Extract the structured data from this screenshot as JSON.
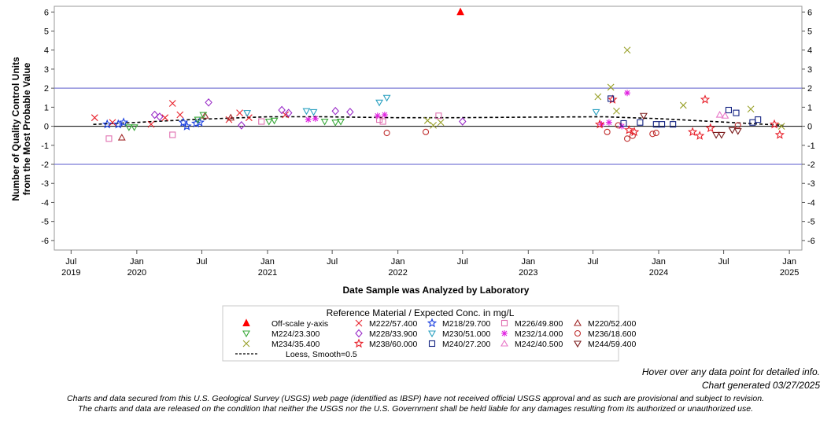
{
  "notes": {
    "hover": "Hover over any data point for detailed info.",
    "generated": "Chart generated 03/27/2025"
  },
  "disclaimer": {
    "line1": "Charts and data secured from this U.S. Geological Survey (USGS) web page (identified as IBSP) have not received official USGS approval and as such are provisional and subject to revision.",
    "line2": "The charts and data are released on the condition that neither the USGS nor the U.S. Government shall be held liable for any damages resulting from its authorized or unauthorized use."
  },
  "chart_data": {
    "type": "scatter",
    "xlabel": "Date Sample was Analyzed by Laboratory",
    "ylabel_line1": "Number of Quality Control Units",
    "ylabel_line2": "from the Most Probable Value",
    "xlim": [
      "2019-05-15",
      "2025-02-05"
    ],
    "ylim": [
      -6.5,
      6.3
    ],
    "y_ticks": [
      -6,
      -5,
      -4,
      -3,
      -2,
      -1,
      0,
      1,
      2,
      3,
      4,
      5,
      6
    ],
    "x_ticks": [
      {
        "date": "2019-07-01",
        "line1": "Jul",
        "line2": "2019"
      },
      {
        "date": "2020-01-01",
        "line1": "Jan",
        "line2": "2020"
      },
      {
        "date": "2020-07-01",
        "line1": "Jul",
        "line2": ""
      },
      {
        "date": "2021-01-01",
        "line1": "Jan",
        "line2": "2021"
      },
      {
        "date": "2021-07-01",
        "line1": "Jul",
        "line2": ""
      },
      {
        "date": "2022-01-01",
        "line1": "Jan",
        "line2": "2022"
      },
      {
        "date": "2022-07-01",
        "line1": "Jul",
        "line2": ""
      },
      {
        "date": "2023-01-01",
        "line1": "Jan",
        "line2": "2023"
      },
      {
        "date": "2023-07-01",
        "line1": "Jul",
        "line2": ""
      },
      {
        "date": "2024-01-01",
        "line1": "Jan",
        "line2": "2024"
      },
      {
        "date": "2024-07-01",
        "line1": "Jul",
        "line2": ""
      },
      {
        "date": "2025-01-01",
        "line1": "Jan",
        "line2": "2025"
      }
    ],
    "reference_lines": [
      {
        "y": 2,
        "color": "#7b7bd6"
      },
      {
        "y": -2,
        "color": "#7b7bd6"
      },
      {
        "y": 0,
        "color": "#000000"
      }
    ],
    "right_axis_mirrors_left": true,
    "grid": false,
    "legend": {
      "title": "Reference Material / Expected Conc. in mg/L",
      "placement": "bottom-center",
      "entries": [
        {
          "label": "Off-scale y-axis",
          "marker": "triangle-filled",
          "color": "#ff0000"
        },
        {
          "label": "M222/57.400",
          "marker": "x",
          "color": "#e8202a"
        },
        {
          "label": "M218/29.700",
          "marker": "star",
          "color": "#1a3fe0"
        },
        {
          "label": "M226/49.800",
          "marker": "square",
          "color": "#e070b0"
        },
        {
          "label": "M220/52.400",
          "marker": "triangle",
          "color": "#a02828"
        },
        {
          "label": "M224/23.300",
          "marker": "triangle-down",
          "color": "#38a838"
        },
        {
          "label": "M228/33.900",
          "marker": "diamond",
          "color": "#9a2cc8"
        },
        {
          "label": "M230/51.000",
          "marker": "triangle-down",
          "color": "#2aa0c0"
        },
        {
          "label": "M232/14.000",
          "marker": "asterisk",
          "color": "#e020e0"
        },
        {
          "label": "M236/18.600",
          "marker": "circle",
          "color": "#c03030"
        },
        {
          "label": "M234/35.400",
          "marker": "x",
          "color": "#98a028"
        },
        {
          "label": "M238/60.000",
          "marker": "star",
          "color": "#e8202a"
        },
        {
          "label": "M240/27.200",
          "marker": "square",
          "color": "#102080"
        },
        {
          "label": "M242/40.500",
          "marker": "triangle",
          "color": "#e878c8"
        },
        {
          "label": "M244/59.400",
          "marker": "triangle-down",
          "color": "#7a1a1a"
        },
        {
          "label": "Loess, Smooth=0.5",
          "marker": "dashed-line",
          "color": "#000000"
        }
      ]
    },
    "series": [
      {
        "name": "Off-scale y-axis",
        "marker": "triangle-filled",
        "color": "#ff0000",
        "points": [
          {
            "x": "2022-06-25",
            "y": 6.0
          }
        ]
      },
      {
        "name": "M222/57.400",
        "marker": "x",
        "color": "#e8202a",
        "points": [
          {
            "x": "2019-09-05",
            "y": 0.45
          },
          {
            "x": "2019-10-25",
            "y": 0.2
          },
          {
            "x": "2020-02-10",
            "y": 0.1
          },
          {
            "x": "2020-03-20",
            "y": 0.45
          },
          {
            "x": "2020-04-10",
            "y": 1.2
          },
          {
            "x": "2020-05-01",
            "y": 0.6
          },
          {
            "x": "2020-09-15",
            "y": 0.35
          },
          {
            "x": "2020-10-15",
            "y": 0.7
          },
          {
            "x": "2020-11-10",
            "y": 0.45
          },
          {
            "x": "2021-02-20",
            "y": 0.6
          }
        ]
      },
      {
        "name": "M218/29.700",
        "marker": "star",
        "color": "#1a3fe0",
        "points": [
          {
            "x": "2019-10-10",
            "y": 0.1
          },
          {
            "x": "2019-11-10",
            "y": 0.1
          },
          {
            "x": "2019-11-25",
            "y": 0.2
          },
          {
            "x": "2020-05-10",
            "y": 0.2
          },
          {
            "x": "2020-05-20",
            "y": 0.0
          },
          {
            "x": "2020-06-15",
            "y": 0.15
          },
          {
            "x": "2020-06-25",
            "y": 0.2
          }
        ]
      },
      {
        "name": "M226/49.800",
        "marker": "square",
        "color": "#e070b0",
        "points": [
          {
            "x": "2019-10-15",
            "y": -0.65
          },
          {
            "x": "2020-04-10",
            "y": -0.45
          },
          {
            "x": "2020-12-15",
            "y": 0.25
          },
          {
            "x": "2021-11-10",
            "y": 0.35
          },
          {
            "x": "2021-11-20",
            "y": 0.25
          },
          {
            "x": "2022-04-25",
            "y": 0.55
          }
        ]
      },
      {
        "name": "M220/52.400",
        "marker": "triangle",
        "color": "#a02828",
        "points": [
          {
            "x": "2019-11-20",
            "y": -0.6
          },
          {
            "x": "2020-07-10",
            "y": 0.55
          },
          {
            "x": "2020-09-20",
            "y": 0.45
          }
        ]
      },
      {
        "name": "M224/23.300",
        "marker": "triangle-down",
        "color": "#38a838",
        "points": [
          {
            "x": "2019-12-10",
            "y": -0.05
          },
          {
            "x": "2019-12-25",
            "y": -0.05
          },
          {
            "x": "2020-06-20",
            "y": 0.35
          },
          {
            "x": "2020-07-05",
            "y": 0.6
          },
          {
            "x": "2021-01-05",
            "y": 0.25
          },
          {
            "x": "2021-01-20",
            "y": 0.3
          },
          {
            "x": "2021-06-10",
            "y": 0.25
          },
          {
            "x": "2021-07-10",
            "y": 0.2
          },
          {
            "x": "2021-07-25",
            "y": 0.25
          }
        ]
      },
      {
        "name": "M228/33.900",
        "marker": "diamond",
        "color": "#9a2cc8",
        "points": [
          {
            "x": "2020-02-20",
            "y": 0.6
          },
          {
            "x": "2020-03-05",
            "y": 0.5
          },
          {
            "x": "2020-07-20",
            "y": 1.25
          },
          {
            "x": "2020-10-20",
            "y": 0.05
          },
          {
            "x": "2021-02-10",
            "y": 0.85
          },
          {
            "x": "2021-03-01",
            "y": 0.7
          },
          {
            "x": "2021-07-10",
            "y": 0.8
          },
          {
            "x": "2021-08-20",
            "y": 0.75
          },
          {
            "x": "2022-07-01",
            "y": 0.25
          }
        ]
      },
      {
        "name": "M230/51.000",
        "marker": "triangle-down",
        "color": "#2aa0c0",
        "points": [
          {
            "x": "2020-11-05",
            "y": 0.7
          },
          {
            "x": "2021-04-20",
            "y": 0.8
          },
          {
            "x": "2021-05-10",
            "y": 0.75
          },
          {
            "x": "2021-11-10",
            "y": 1.25
          },
          {
            "x": "2021-12-01",
            "y": 1.5
          },
          {
            "x": "2023-07-10",
            "y": 0.75
          }
        ]
      },
      {
        "name": "M232/14.000",
        "marker": "asterisk",
        "color": "#e020e0",
        "points": [
          {
            "x": "2021-04-25",
            "y": 0.35
          },
          {
            "x": "2021-05-15",
            "y": 0.4
          },
          {
            "x": "2021-11-05",
            "y": 0.55
          },
          {
            "x": "2021-11-25",
            "y": 0.6
          },
          {
            "x": "2023-07-25",
            "y": 0.1
          },
          {
            "x": "2023-08-15",
            "y": 0.2
          },
          {
            "x": "2023-09-20",
            "y": 0.0
          },
          {
            "x": "2023-10-05",
            "y": 1.75
          }
        ]
      },
      {
        "name": "M236/18.600",
        "marker": "circle",
        "color": "#c03030",
        "points": [
          {
            "x": "2021-12-01",
            "y": -0.35
          },
          {
            "x": "2022-03-20",
            "y": -0.3
          },
          {
            "x": "2023-08-10",
            "y": -0.3
          },
          {
            "x": "2023-09-10",
            "y": 0.05
          },
          {
            "x": "2023-10-05",
            "y": -0.65
          },
          {
            "x": "2023-10-20",
            "y": -0.5
          },
          {
            "x": "2023-12-15",
            "y": -0.4
          },
          {
            "x": "2023-12-25",
            "y": -0.35
          },
          {
            "x": "2024-08-10",
            "y": 0.05
          }
        ]
      },
      {
        "name": "M234/35.400",
        "marker": "x",
        "color": "#98a028",
        "points": [
          {
            "x": "2022-03-25",
            "y": 0.3
          },
          {
            "x": "2022-04-10",
            "y": 0.05
          },
          {
            "x": "2022-05-01",
            "y": 0.2
          },
          {
            "x": "2023-07-15",
            "y": 1.55
          },
          {
            "x": "2023-08-20",
            "y": 2.05
          },
          {
            "x": "2023-09-05",
            "y": 0.8
          },
          {
            "x": "2023-10-05",
            "y": 4.0
          },
          {
            "x": "2024-03-10",
            "y": 1.1
          },
          {
            "x": "2024-09-15",
            "y": 0.9
          },
          {
            "x": "2024-12-10",
            "y": 0.0
          }
        ]
      },
      {
        "name": "M238/60.000",
        "marker": "star",
        "color": "#e8202a",
        "points": [
          {
            "x": "2023-07-20",
            "y": 0.1
          },
          {
            "x": "2023-08-25",
            "y": 1.4
          },
          {
            "x": "2023-10-10",
            "y": -0.2
          },
          {
            "x": "2023-10-25",
            "y": -0.3
          },
          {
            "x": "2024-04-05",
            "y": -0.3
          },
          {
            "x": "2024-04-25",
            "y": -0.5
          },
          {
            "x": "2024-05-10",
            "y": 1.4
          },
          {
            "x": "2024-05-25",
            "y": -0.1
          },
          {
            "x": "2024-11-20",
            "y": 0.1
          },
          {
            "x": "2024-12-05",
            "y": -0.45
          }
        ]
      },
      {
        "name": "M240/27.200",
        "marker": "square",
        "color": "#102080",
        "points": [
          {
            "x": "2023-08-20",
            "y": 1.45
          },
          {
            "x": "2023-09-25",
            "y": 0.15
          },
          {
            "x": "2023-11-10",
            "y": 0.2
          },
          {
            "x": "2023-12-25",
            "y": 0.1
          },
          {
            "x": "2024-01-10",
            "y": 0.1
          },
          {
            "x": "2024-02-10",
            "y": 0.1
          },
          {
            "x": "2024-07-15",
            "y": 0.85
          },
          {
            "x": "2024-08-05",
            "y": 0.7
          },
          {
            "x": "2024-09-20",
            "y": 0.2
          },
          {
            "x": "2024-10-05",
            "y": 0.35
          }
        ]
      },
      {
        "name": "M242/40.500",
        "marker": "triangle",
        "color": "#e878c8",
        "points": [
          {
            "x": "2024-06-20",
            "y": 0.6
          },
          {
            "x": "2024-07-05",
            "y": 0.55
          }
        ]
      },
      {
        "name": "M244/59.400",
        "marker": "triangle-down",
        "color": "#7a1a1a",
        "points": [
          {
            "x": "2023-11-20",
            "y": 0.55
          },
          {
            "x": "2024-06-10",
            "y": -0.45
          },
          {
            "x": "2024-06-25",
            "y": -0.45
          },
          {
            "x": "2024-07-25",
            "y": -0.2
          },
          {
            "x": "2024-08-10",
            "y": -0.25
          }
        ]
      }
    ],
    "loess": {
      "name": "Loess, Smooth=0.5",
      "points": [
        {
          "x": "2019-09-01",
          "y": 0.1
        },
        {
          "x": "2020-01-01",
          "y": 0.2
        },
        {
          "x": "2020-06-01",
          "y": 0.35
        },
        {
          "x": "2021-01-01",
          "y": 0.5
        },
        {
          "x": "2021-06-01",
          "y": 0.5
        },
        {
          "x": "2022-01-01",
          "y": 0.45
        },
        {
          "x": "2022-06-01",
          "y": 0.45
        },
        {
          "x": "2023-01-01",
          "y": 0.48
        },
        {
          "x": "2023-08-01",
          "y": 0.5
        },
        {
          "x": "2024-01-01",
          "y": 0.4
        },
        {
          "x": "2024-06-01",
          "y": 0.25
        },
        {
          "x": "2024-12-15",
          "y": 0.05
        }
      ]
    }
  }
}
